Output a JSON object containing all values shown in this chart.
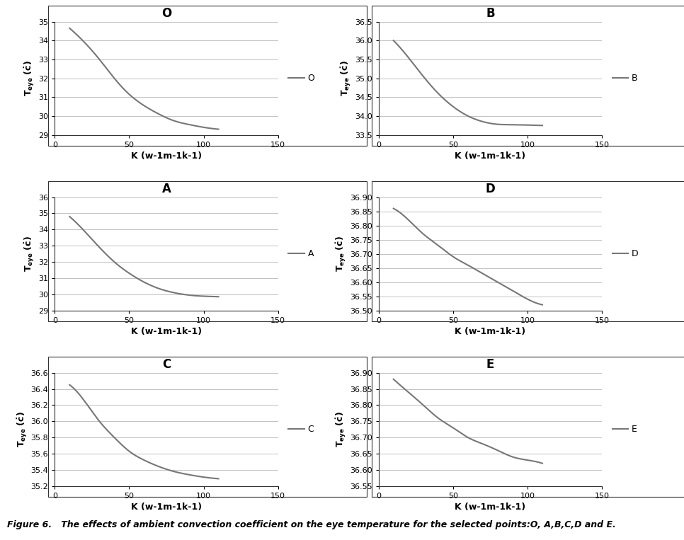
{
  "panels": [
    {
      "title": "O",
      "label": "O",
      "x_data": [
        10,
        20,
        30,
        40,
        50,
        60,
        70,
        80,
        90,
        100,
        110
      ],
      "y_data": [
        34.65,
        33.9,
        33.0,
        32.0,
        31.15,
        30.55,
        30.1,
        29.75,
        29.55,
        29.4,
        29.3
      ],
      "ylim": [
        29,
        35
      ],
      "yticks": [
        29,
        30,
        31,
        32,
        33,
        34,
        35
      ]
    },
    {
      "title": "B",
      "label": "B",
      "x_data": [
        10,
        20,
        30,
        40,
        50,
        60,
        70,
        80,
        90,
        100,
        110
      ],
      "y_data": [
        36.0,
        35.55,
        35.05,
        34.6,
        34.25,
        34.0,
        33.85,
        33.78,
        33.77,
        33.76,
        33.75
      ],
      "ylim": [
        33.5,
        36.5
      ],
      "yticks": [
        33.5,
        34.0,
        34.5,
        35.0,
        35.5,
        36.0,
        36.5
      ]
    },
    {
      "title": "A",
      "label": "A",
      "x_data": [
        10,
        20,
        30,
        40,
        50,
        60,
        70,
        80,
        90,
        100,
        110
      ],
      "y_data": [
        34.8,
        33.9,
        32.9,
        32.0,
        31.3,
        30.75,
        30.35,
        30.1,
        29.95,
        29.88,
        29.85
      ],
      "ylim": [
        29,
        36
      ],
      "yticks": [
        29,
        30,
        31,
        32,
        33,
        34,
        35,
        36
      ]
    },
    {
      "title": "D",
      "label": "D",
      "x_data": [
        10,
        20,
        30,
        40,
        50,
        60,
        70,
        80,
        90,
        100,
        110
      ],
      "y_data": [
        36.86,
        36.82,
        36.77,
        36.73,
        36.69,
        36.66,
        36.63,
        36.6,
        36.57,
        36.54,
        36.52
      ],
      "ylim": [
        36.5,
        36.9
      ],
      "yticks": [
        36.5,
        36.55,
        36.6,
        36.65,
        36.7,
        36.75,
        36.8,
        36.85,
        36.9
      ]
    },
    {
      "title": "C",
      "label": "C",
      "x_data": [
        10,
        20,
        30,
        40,
        50,
        60,
        70,
        80,
        90,
        100,
        110
      ],
      "y_data": [
        36.45,
        36.25,
        36.0,
        35.8,
        35.63,
        35.52,
        35.44,
        35.38,
        35.34,
        35.31,
        35.29
      ],
      "ylim": [
        35.2,
        36.6
      ],
      "yticks": [
        35.2,
        35.4,
        35.6,
        35.8,
        36.0,
        36.2,
        36.4,
        36.6
      ]
    },
    {
      "title": "E",
      "label": "E",
      "x_data": [
        10,
        20,
        30,
        40,
        50,
        60,
        70,
        80,
        90,
        100,
        110
      ],
      "y_data": [
        36.88,
        36.84,
        36.8,
        36.76,
        36.73,
        36.7,
        36.68,
        36.66,
        36.64,
        36.63,
        36.62
      ],
      "ylim": [
        36.55,
        36.9
      ],
      "yticks": [
        36.55,
        36.6,
        36.65,
        36.7,
        36.75,
        36.8,
        36.85,
        36.9
      ]
    }
  ],
  "xlim": [
    0,
    150
  ],
  "xticks": [
    0,
    50,
    100,
    150
  ],
  "xlabel": "K (w-1m-1k-1)",
  "ylabel": "T_eye (c)",
  "line_color": "#777777",
  "figure_caption": "Figure 6.   The effects of ambient convection coefficient on the eye temperature for the selected points:O, A,B,C,D and E.",
  "bg_color": "#ffffff",
  "grid_color": "#aaaaaa",
  "grid_linewidth": 0.5,
  "line_width": 1.5,
  "border_color": "#333333"
}
